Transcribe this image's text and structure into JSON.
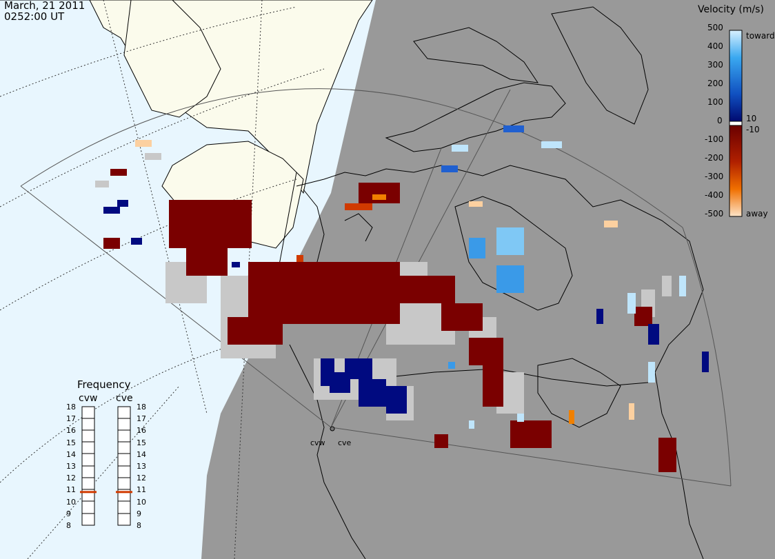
{
  "header": {
    "date": "March, 21 2011",
    "time": "0252:00 UT"
  },
  "colorbar": {
    "title": "Velocity (m/s)",
    "ticks": [
      "500",
      "400",
      "300",
      "200",
      "100",
      "0",
      "-100",
      "-200",
      "-300",
      "-400",
      "-500"
    ],
    "inner_ticks": [
      "10",
      "-10"
    ],
    "label_top": "toward",
    "label_bottom": "away"
  },
  "frequency": {
    "title": "Frequency",
    "radars": [
      "cvw",
      "cve"
    ],
    "ticks": [
      "18",
      "17",
      "16",
      "15",
      "14",
      "13",
      "12",
      "11",
      "10",
      "9",
      "8"
    ],
    "values_mhz": [
      10.8,
      10.8
    ],
    "marker_color": "#d03a00"
  },
  "radar_sites": [
    "cvw",
    "cve"
  ],
  "colors": {
    "dayside": "#e8f6fe",
    "nightside": "#999999",
    "land_day": "#fbfbec",
    "ground_scatter": "#c8c8c8",
    "away_dark": "#7a0000",
    "toward_dark": "#000a80"
  }
}
